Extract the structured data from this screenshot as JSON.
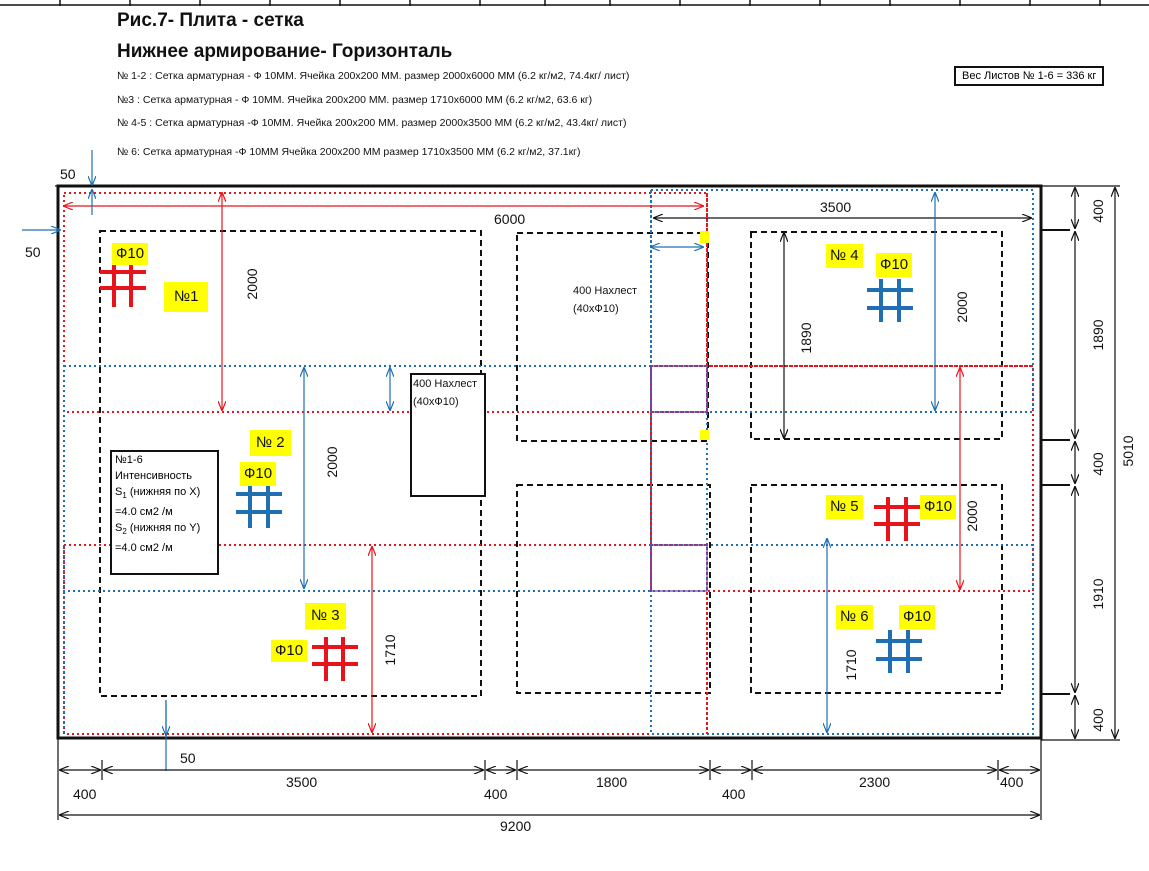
{
  "title": {
    "line1": "Рис.7- Плита - сетка",
    "line2": "Нижнее армирование- Горизонталь"
  },
  "specs": [
    "№ 1-2 : Сетка арматурная - Ф 10ММ. Ячейка  200x200 ММ. размер 2000x6000 ММ (6.2 кг/м2, 74.4кг/ лист)",
    "№3 : Сетка арматурная - Ф 10ММ. Ячейка  200x200 ММ. размер 1710x6000 ММ (6.2 кг/м2, 63.6 кг)",
    "№ 4-5 : Сетка арматурная -Ф 10ММ. Ячейка  200x200 ММ. размер 2000x3500 ММ (6.2 кг/м2, 43.4кг/ лист)",
    "№ 6: Сетка арматурная -Ф 10ММ Ячейка  200x200 ММ размер 1710x3500 ММ (6.2 кг/м2, 37.1кг)"
  ],
  "weight_note": "Вес Листов № 1-6 = 336 кг",
  "colors": {
    "red": "#e8141b",
    "blue": "#1f6fb2",
    "black": "#111111",
    "yellow": "#ffff00"
  },
  "sheets": {
    "n1": "№1",
    "n2": "№ 2",
    "n3": "№ 3",
    "n4": "№ 4",
    "n5": "№ 5",
    "n6": "№ 6",
    "phi": "Ф10"
  },
  "overlap": {
    "a_line1": "400 Нахлест",
    "a_line2": "(40xФ10)",
    "b_line1": "400 Нахлест",
    "b_line2": "(40xФ10)"
  },
  "legend": {
    "l1": "№1-6",
    "l2": "Интенсивность",
    "l3a": "S",
    "l3sub": "1",
    "l3b": " (нижняя по X)",
    "l4": "=4.0 см2 /м",
    "l5a": "S",
    "l5sub": "2",
    "l5b": " (нижняя по Y)",
    "l6": "=4.0 см2 /м"
  },
  "dims": {
    "d50_top": "50",
    "d50_left": "50",
    "d50_bottom": "50",
    "d6000": "6000",
    "d3500_top": "3500",
    "d2000_n1": "2000",
    "d2000_n2": "2000",
    "d2000_n4": "2000",
    "d2000_n5": "2000",
    "d1890_in": "1890",
    "d1710_n3": "1710",
    "d1710_n6": "1710",
    "r400_a": "400",
    "r1890": "1890",
    "r400_b": "400",
    "r1910": "1910",
    "r400_c": "400",
    "r5010": "5010",
    "b400_a": "400",
    "b3500": "3500",
    "b400_b": "400",
    "b1800": "1800",
    "b400_c": "400",
    "b2300": "2300",
    "b400_d": "400",
    "b9200": "9200"
  }
}
